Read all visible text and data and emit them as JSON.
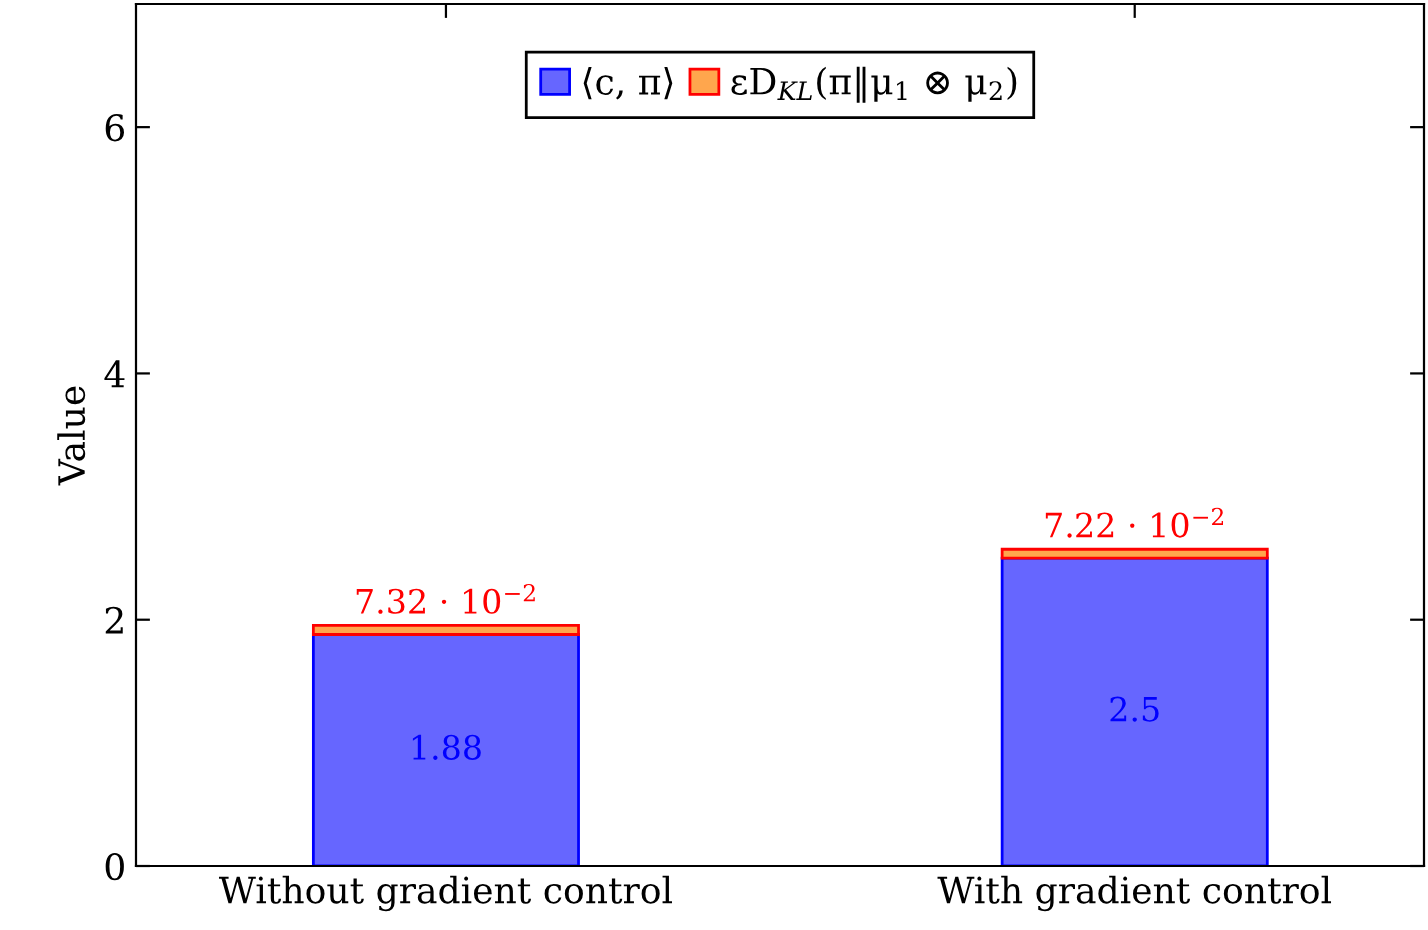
{
  "chart_data": {
    "type": "bar",
    "stacked": true,
    "ylabel": "Value",
    "categories": [
      "Without gradient control",
      "With gradient control"
    ],
    "series": [
      {
        "name": "⟨c, π⟩",
        "color": "#6666ff",
        "values": [
          1.88,
          2.5
        ],
        "value_labels": [
          "1.88",
          "2.5"
        ]
      },
      {
        "name": "εD$_{KL}$(π‖μ$_{1}$ ⊗ μ$_{2}$)",
        "color": "#ffa64d",
        "values": [
          0.0732,
          0.0722
        ],
        "value_labels": [
          "7.32 · 10$^{−2}$",
          "7.22 · 10$^{−2}$"
        ]
      }
    ],
    "ylim": [
      0,
      7
    ],
    "yticks": [
      0,
      2,
      4,
      6
    ],
    "grid": false,
    "legend": "top"
  }
}
